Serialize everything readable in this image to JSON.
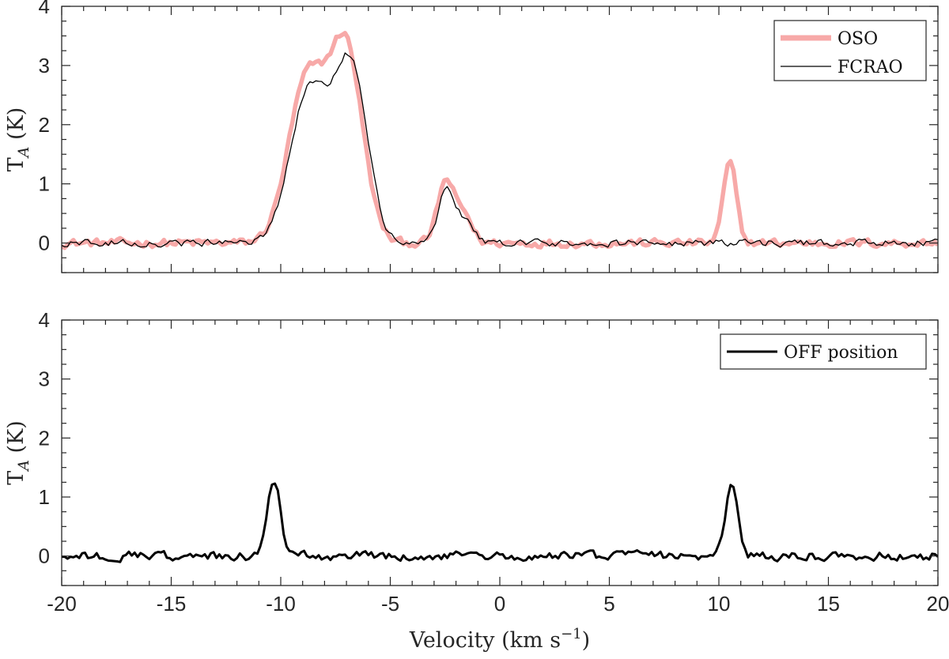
{
  "chart_data": [
    {
      "type": "line",
      "ylabel_main": "T",
      "ylabel_sub": "A",
      "ylabel_unit": "(K)",
      "xlabel": "",
      "xlim": [
        -20,
        20
      ],
      "ylim": [
        -0.5,
        4
      ],
      "xticks": [
        -20,
        -15,
        -10,
        -5,
        0,
        5,
        10,
        15,
        20
      ],
      "yticks": [
        0,
        1,
        2,
        3,
        4
      ],
      "xtick_labels_visible": false,
      "legend": {
        "placement": "top-right",
        "entries": [
          "OSO",
          "FCRAO"
        ]
      },
      "series": [
        {
          "name": "OSO",
          "color": "#f7a9a8",
          "noise_amplitude": 0.1,
          "baseline": 0.0,
          "components": [
            {
              "center": -8.8,
              "amplitude": 2.75,
              "sigma": 0.85
            },
            {
              "center": -7.0,
              "amplitude": 3.2,
              "sigma": 0.75
            },
            {
              "center": -2.45,
              "amplitude": 1.05,
              "sigma": 0.38
            },
            {
              "center": -1.6,
              "amplitude": 0.45,
              "sigma": 0.35
            },
            {
              "center": 10.5,
              "amplitude": 1.35,
              "sigma": 0.3
            }
          ]
        },
        {
          "name": "FCRAO",
          "color": "#000000",
          "noise_amplitude": 0.09,
          "baseline": 0.0,
          "components": [
            {
              "center": -8.7,
              "amplitude": 2.6,
              "sigma": 0.85
            },
            {
              "center": -6.8,
              "amplitude": 2.95,
              "sigma": 0.75
            },
            {
              "center": -2.4,
              "amplitude": 0.95,
              "sigma": 0.38
            },
            {
              "center": -1.5,
              "amplitude": 0.35,
              "sigma": 0.35
            }
          ]
        }
      ]
    },
    {
      "type": "line",
      "ylabel_main": "T",
      "ylabel_sub": "A",
      "ylabel_unit": "(K)",
      "xlabel": "Velocity (km s",
      "xlabel_sup": "−1",
      "xlabel_close": ")",
      "xlim": [
        -20,
        20
      ],
      "ylim": [
        -0.5,
        4
      ],
      "xticks": [
        -20,
        -15,
        -10,
        -5,
        0,
        5,
        10,
        15,
        20
      ],
      "yticks": [
        0,
        1,
        2,
        3,
        4
      ],
      "xtick_labels_visible": true,
      "legend": {
        "placement": "top-right",
        "entries": [
          "OFF position"
        ]
      },
      "series": [
        {
          "name": "OFF position",
          "color": "#000000",
          "noise_amplitude": 0.11,
          "baseline": 0.0,
          "components": [
            {
              "center": -10.3,
              "amplitude": 1.3,
              "sigma": 0.28
            },
            {
              "center": 10.6,
              "amplitude": 1.2,
              "sigma": 0.28
            }
          ]
        }
      ]
    }
  ]
}
